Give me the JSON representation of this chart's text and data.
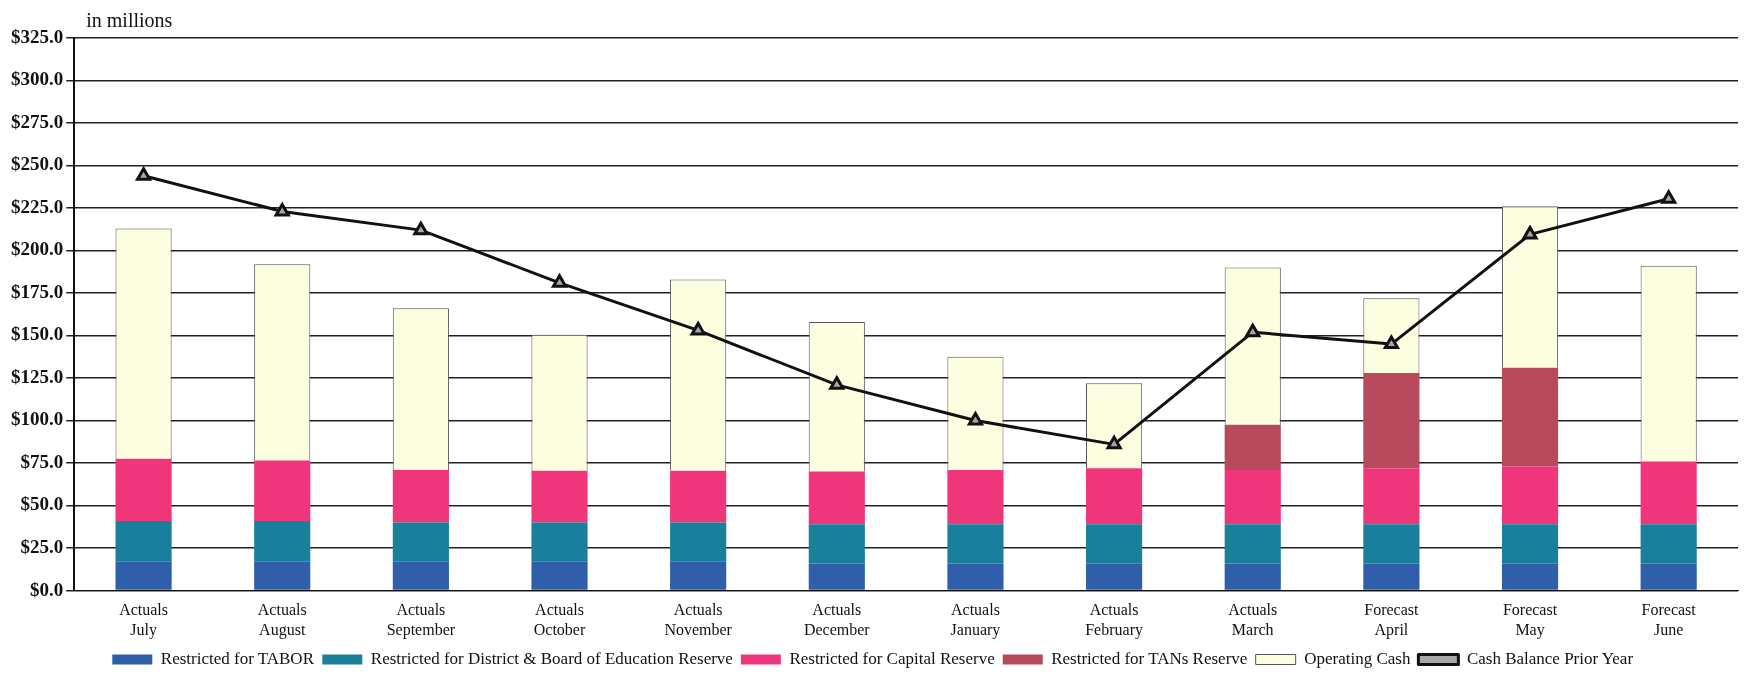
{
  "chart_data": {
    "type": "bar",
    "stacked": true,
    "ylabel": "in millions",
    "categories": [
      "Actuals July",
      "Actuals August",
      "Actuals September",
      "Actuals October",
      "Actuals November",
      "Actuals December",
      "Actuals January",
      "Actuals February",
      "Actuals March",
      "Forecast April",
      "Forecast May",
      "Forecast June"
    ],
    "series": [
      {
        "name": "Restricted for TABOR",
        "color": "#2e5fa8",
        "values": [
          17,
          17,
          17,
          17,
          17,
          16,
          16,
          16,
          16,
          16,
          16,
          16
        ]
      },
      {
        "name": "Restricted for District & Board of Education Reserve",
        "color": "#1a7f9a",
        "values": [
          24,
          24,
          23,
          23,
          23,
          23,
          23,
          23,
          23,
          23,
          23,
          23
        ]
      },
      {
        "name": "Restricted for Capital Reserve",
        "color": "#f0367a",
        "values": [
          36.5,
          35.5,
          31,
          30.5,
          30.5,
          31,
          32,
          33,
          32,
          33,
          34,
          37
        ]
      },
      {
        "name": "Restricted for TANs Reserve",
        "color": "#b84a5e",
        "values": [
          null,
          null,
          null,
          null,
          null,
          null,
          null,
          null,
          26.5,
          56,
          58,
          null
        ]
      },
      {
        "name": "Operating Cash",
        "color": "#fdfde0",
        "values": [
          135.5,
          115.5,
          95,
          80,
          112.5,
          88,
          66.5,
          50,
          92.5,
          44,
          95,
          115
        ]
      },
      {
        "name": "Cash Balance Prior Year",
        "type": "line",
        "color": "#111111",
        "marker": "triangle",
        "values": [
          244,
          223,
          212,
          181,
          153,
          121,
          100,
          86,
          152,
          145,
          209.5,
          230.5
        ]
      }
    ],
    "ylim": [
      0,
      325
    ],
    "yticks": [
      {
        "value": 0,
        "label": "$0.0"
      },
      {
        "value": 25,
        "label": "$25.0"
      },
      {
        "value": 50,
        "label": "$50.0"
      },
      {
        "value": 75,
        "label": "$75.0"
      },
      {
        "value": 100,
        "label": "$100.0"
      },
      {
        "value": 125,
        "label": "$125.0"
      },
      {
        "value": 150,
        "label": "$150.0"
      },
      {
        "value": 175,
        "label": "$175.0"
      },
      {
        "value": 200,
        "label": "$200.0"
      },
      {
        "value": 225,
        "label": "$225.0"
      },
      {
        "value": 250,
        "label": "$250.0"
      },
      {
        "value": 275,
        "label": "$275.0"
      },
      {
        "value": 300,
        "label": "$300.0"
      },
      {
        "value": 325,
        "label": "$325.0"
      }
    ],
    "grid": "y",
    "legend": "bottom"
  }
}
